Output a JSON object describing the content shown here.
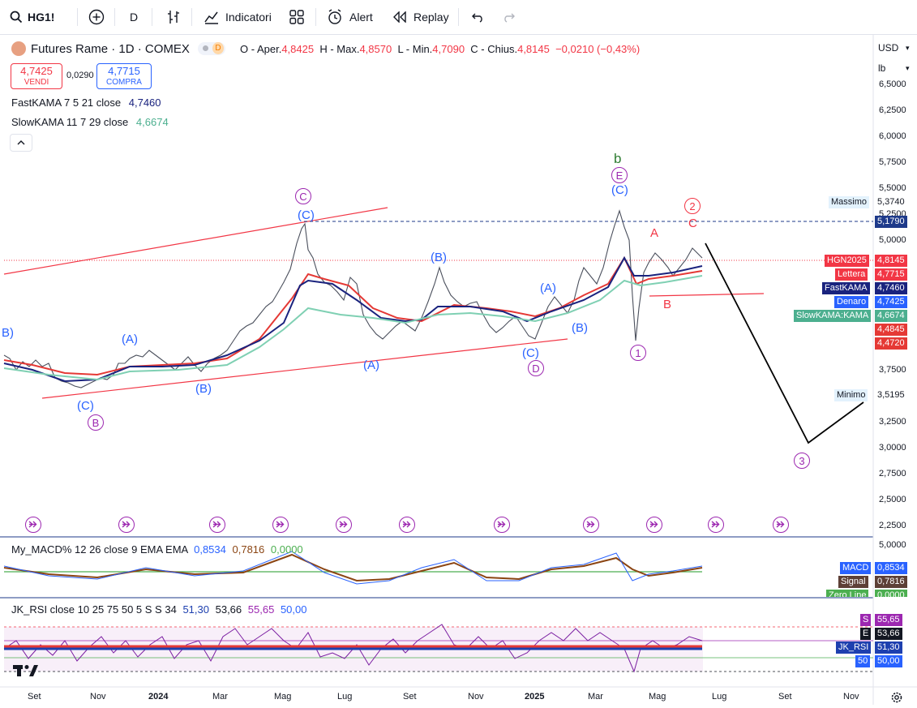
{
  "toolbar": {
    "symbol": "HG1!",
    "interval": "D",
    "indicators_label": "Indicatori",
    "alert_label": "Alert",
    "replay_label": "Replay"
  },
  "legend": {
    "title": "Futures Rame · 1D · COMEX",
    "badge": "D",
    "ohlc": {
      "o_label": "O - Aper.",
      "o": "4,8425",
      "h_label": "H - Max.",
      "h": "4,8570",
      "l_label": "L - Min.",
      "l": "4,7090",
      "c_label": "C - Chius.",
      "c": "4,8145",
      "change": "−0,0210 (−0,43%)"
    },
    "sell_price": "4,7425",
    "sell_label": "VENDI",
    "spread": "0,0290",
    "buy_price": "4,7715",
    "buy_label": "COMPRA",
    "fastkama_label": "FastKAMA 7 5 21 close",
    "fastkama_value": "4,7460",
    "slowkama_label": "SlowKAMA 11 7 29 close",
    "slowkama_value": "4,6674"
  },
  "macd": {
    "label": "My_MACD% 12 26 close 9 EMA EMA",
    "v1": "0,8534",
    "v2": "0,7816",
    "v3": "0,0000",
    "tag_macd": "MACD",
    "tag_signal": "Signal",
    "tag_zero": "Zero Line",
    "axis_top": "5,0000"
  },
  "rsi": {
    "label": "JK_RSI close 10 25 75 50 5 S S 34",
    "v1": "51,30",
    "v2": "53,66",
    "v3": "55,65",
    "v4": "50,00",
    "tag_s": "S",
    "tag_e": "E",
    "tag_jk": "JK_RSI",
    "tag_50": "50"
  },
  "price_axis": {
    "currency": "USD",
    "unit": "lb",
    "ticks": [
      "6,5000",
      "6,2500",
      "6,0000",
      "5,7500",
      "5,5000",
      "5,2500",
      "5,0000",
      "3,7500",
      "3,2500",
      "3,0000",
      "2,7500",
      "2,5000",
      "2,2500"
    ]
  },
  "price_tags": {
    "massimo_label": "Massimo",
    "massimo": "5,3740",
    "dashed": "5,1790",
    "hgn_label": "HGN2025",
    "hgn": "4,8145",
    "lettera_label": "Lettera",
    "lettera": "4,7715",
    "fastkama_label": "FastKAMA",
    "fastkama": "4,7460",
    "denaro_label": "Denaro",
    "denaro": "4,7425",
    "slowkama_label": "SlowKAMA:KAMA",
    "slowkama": "4,6674",
    "red1": "4,4845",
    "red2": "4,4720",
    "minimo_label": "Minimo",
    "minimo": "3,5195"
  },
  "time_axis": [
    "Set",
    "Nov",
    "2024",
    "Mar",
    "Mag",
    "Lug",
    "Set",
    "Nov",
    "2025",
    "Mar",
    "Mag",
    "Lug",
    "Set",
    "Nov"
  ],
  "wave_labels": {
    "b_green": "b",
    "E": "E",
    "C_top": "(C)",
    "two": "2",
    "C_red": "C",
    "A_red": "A",
    "B_red": "B",
    "one": "1",
    "three": "3",
    "C_circ": "C",
    "C_par": "(C)",
    "B_par_mid": "(B)",
    "A_par_mid": "(A)",
    "A_par_right": "(A)",
    "B_par_right": "(B)",
    "C_par_right": "(C)",
    "D_circ": "D",
    "B_edge": "B)",
    "A_par_left": "(A)",
    "B_par_left": "(B)",
    "C_par_left": "(C)",
    "B_circ": "B"
  },
  "colors": {
    "fastkama": "#1a237e",
    "slowkama": "#7fd0b3",
    "red_ma": "#e53935",
    "up": "#26a69a",
    "down": "#ef5350",
    "wave_purple": "#9c27b0",
    "wave_blue": "#2962ff",
    "denaro_tag": "#2962ff",
    "hgn_tag": "#f23645"
  }
}
